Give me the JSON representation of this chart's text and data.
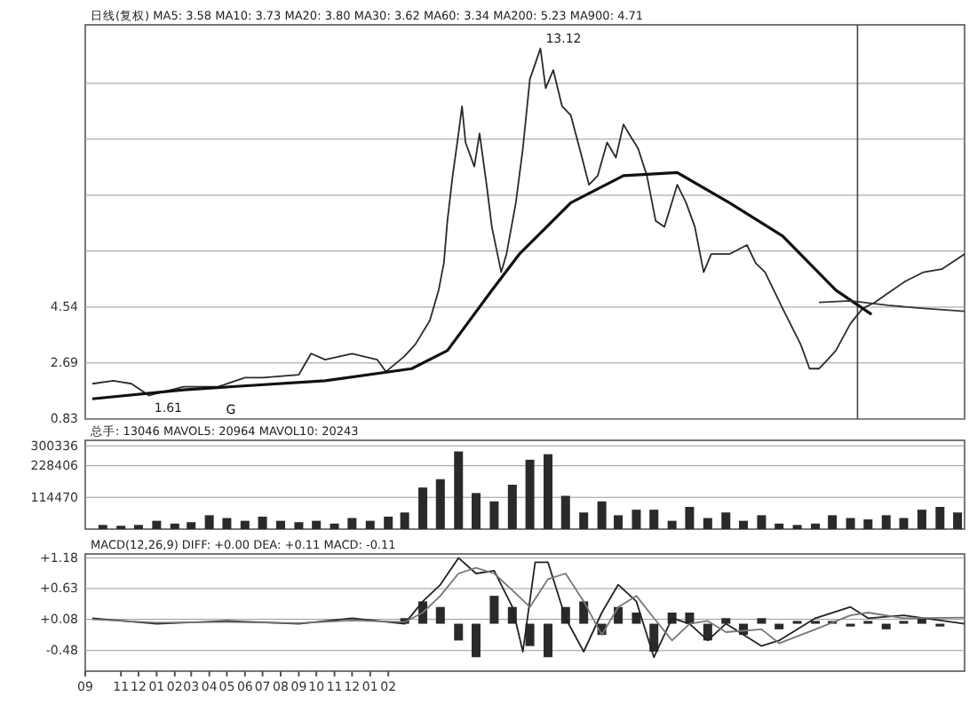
{
  "chart_data": [
    {
      "type": "line",
      "subtitle": "日线(复权)  MA5: 3.58 MA10: 3.73 MA20: 3.80 MA30: 3.62 MA60: 3.34 MA200: 5.23 MA900: 4.71",
      "xlim": [
        "2004-09-01",
        "2008-10-13"
      ],
      "ylim": [
        0.83,
        13.9
      ],
      "yticks": [
        0.83,
        2.69,
        4.54,
        {
          "value": 6.4,
          "label": null
        },
        {
          "value": 8.25,
          "label": null
        },
        {
          "value": 10.11,
          "label": null
        },
        {
          "value": 11.96,
          "label": null
        }
      ],
      "grid": "y",
      "tick_labels": "y",
      "marker": "none",
      "line_style": "solid",
      "series": [
        {
          "color": "#2a2a2a",
          "x": [
            "2004-09-13",
            "2004-10-19",
            "2004-11-19",
            "2004-12-19",
            "2005-02-16",
            "2005-04-16",
            "2005-06-01",
            "2005-07-01",
            "2005-09-01",
            "2005-09-22",
            "2005-10-16",
            "2005-12-01",
            "2006-01-13",
            "2006-01-28",
            "2006-02-28",
            "2006-03-19",
            "2006-04-13",
            "2006-04-28",
            "2006-05-07",
            "2006-05-13",
            "2006-05-22",
            "2006-06-01",
            "2006-06-07",
            "2006-06-13",
            "2006-06-28",
            "2006-07-07",
            "2006-07-19",
            "2006-07-28",
            "2006-08-13",
            "2006-08-22",
            "2006-09-07",
            "2006-09-19",
            "2006-10-01",
            "2006-10-10",
            "2006-10-19",
            "2006-10-28",
            "2006-11-10",
            "2006-11-25",
            "2006-12-10",
            "2006-12-25",
            "2007-01-10",
            "2007-01-25",
            "2007-02-10",
            "2007-02-25",
            "2007-03-10",
            "2007-03-19",
            "2007-04-04",
            "2007-04-19",
            "2007-05-04",
            "2007-05-19",
            "2007-06-10",
            "2007-06-25",
            "2007-07-10",
            "2007-07-25",
            "2007-08-07",
            "2007-09-07",
            "2007-10-07",
            "2007-10-22",
            "2007-11-07",
            "2007-12-07",
            "2008-01-07",
            "2008-01-22",
            "2008-02-07",
            "2008-02-22",
            "2008-03-07",
            "2008-04-01",
            "2008-04-22",
            "2008-05-13",
            "2008-06-04",
            "2008-07-04",
            "2008-08-04",
            "2008-09-04",
            "2008-10-13"
          ],
          "values": [
            2.0,
            2.1,
            2.0,
            1.61,
            1.9,
            1.9,
            2.2,
            2.2,
            2.3,
            3.0,
            2.8,
            3.0,
            2.8,
            2.4,
            2.9,
            3.3,
            4.1,
            5.1,
            6.0,
            7.4,
            8.9,
            10.3,
            11.2,
            10.0,
            9.2,
            10.3,
            8.6,
            7.2,
            5.7,
            6.3,
            8.0,
            9.8,
            12.1,
            12.6,
            13.12,
            11.8,
            12.4,
            11.2,
            10.9,
            9.8,
            8.6,
            8.9,
            10.0,
            9.5,
            10.6,
            10.3,
            9.8,
            8.9,
            7.4,
            7.2,
            8.6,
            8.0,
            7.2,
            5.7,
            6.3,
            6.3,
            6.6,
            6.0,
            5.7,
            4.5,
            3.3,
            2.5,
            2.5,
            2.8,
            3.1,
            4.0,
            4.5,
            4.7,
            5.0,
            5.4,
            5.7,
            5.8,
            6.3
          ]
        },
        {
          "color": "#111111",
          "x": [
            "2004-09-13",
            "2005-02-16",
            "2005-10-16",
            "2006-03-13",
            "2006-05-13",
            "2006-07-28",
            "2006-09-13",
            "2006-12-10",
            "2007-03-10",
            "2007-06-10",
            "2007-09-07",
            "2007-12-07",
            "2008-03-07",
            "2008-05-07"
          ],
          "values": [
            1.5,
            1.8,
            2.1,
            2.5,
            3.1,
            5.1,
            6.3,
            8.0,
            8.9,
            9.0,
            8.0,
            6.9,
            5.1,
            4.3
          ]
        },
        {
          "color": "#333333",
          "x": [
            "2008-02-07",
            "2008-04-01",
            "2008-06-04",
            "2008-08-04",
            "2008-10-13"
          ],
          "values": [
            4.7,
            4.75,
            4.6,
            4.5,
            4.4
          ]
        }
      ],
      "ref_lines": [
        {
          "axis": "x",
          "value": "2008-04-13"
        }
      ],
      "annotations": [
        {
          "text": "13.12",
          "x": "2006-10-19",
          "y": 13.12
        },
        {
          "text": "1.61",
          "x": "2004-12-19",
          "y": 1.61
        },
        "G"
      ]
    },
    {
      "type": "bar",
      "subtitle": "总手: 13046 MAVOL5: 20964 MAVOL10: 20243",
      "xlim": [
        "2004-09-01",
        "2008-10-13"
      ],
      "ylim": [
        0,
        320000
      ],
      "yticks": [
        114470,
        228406,
        300336
      ],
      "grid": "y",
      "tick_labels": "y",
      "color": "#2a2a2a",
      "x": [
        "2004-10",
        "2004-11",
        "2004-12",
        "2005-01",
        "2005-02",
        "2005-03",
        "2005-04",
        "2005-05",
        "2005-06",
        "2005-07",
        "2005-08",
        "2005-09",
        "2005-10",
        "2005-11",
        "2005-12",
        "2006-01",
        "2006-02",
        "2006-03",
        "2006-04",
        "2006-05",
        "2006-06",
        "2006-07",
        "2006-08",
        "2006-09",
        "2006-10",
        "2006-11",
        "2006-12",
        "2007-01",
        "2007-02",
        "2007-03",
        "2007-04",
        "2007-05",
        "2007-06",
        "2007-07",
        "2007-08",
        "2007-09",
        "2007-10",
        "2007-11",
        "2007-12",
        "2008-01",
        "2008-02",
        "2008-03",
        "2008-04",
        "2008-05",
        "2008-06",
        "2008-07",
        "2008-08",
        "2008-09",
        "2008-10"
      ],
      "values": [
        15000,
        12000,
        15000,
        30000,
        20000,
        25000,
        50000,
        40000,
        30000,
        45000,
        30000,
        25000,
        30000,
        20000,
        40000,
        30000,
        45000,
        60000,
        150000,
        180000,
        280000,
        130000,
        100000,
        160000,
        250000,
        270000,
        120000,
        60000,
        100000,
        50000,
        70000,
        70000,
        30000,
        80000,
        40000,
        60000,
        30000,
        50000,
        20000,
        15000,
        20000,
        50000,
        40000,
        35000,
        50000,
        40000,
        70000,
        80000,
        60000
      ]
    },
    {
      "type": "line",
      "subtitle": "MACD(12,26,9) DIFF: +0.00 DEA: +0.11 MACD: -0.11",
      "xlim": [
        "2004-09-01",
        "2008-10-13"
      ],
      "ylim": [
        -0.85,
        1.25
      ],
      "yticks": [
        {
          "value": 1.18,
          "label": "+1.18"
        },
        {
          "value": 0.63,
          "label": "+0.63"
        },
        {
          "value": 0.08,
          "label": "+0.08"
        },
        -0.48
      ],
      "grid": "y",
      "marker": "none",
      "line_style": "solid",
      "xticks": [
        {
          "value": "2004-09",
          "label": "09"
        },
        {
          "value": "2004-11",
          "label": "11"
        },
        {
          "value": "2004-12",
          "label": "12"
        },
        {
          "value": "2005-01",
          "label": "01"
        },
        {
          "value": "2005-02",
          "label": "02"
        },
        {
          "value": "2005-03",
          "label": "03"
        },
        {
          "value": "2005-04",
          "label": "04"
        },
        {
          "value": "2005-05",
          "label": "05"
        },
        {
          "value": "2005-06",
          "label": "06"
        },
        {
          "value": "2005-07",
          "label": "07"
        },
        {
          "value": "2005-08",
          "label": "08"
        },
        {
          "value": "2005-09",
          "label": "09"
        },
        {
          "value": "2005-10",
          "label": "10"
        },
        {
          "value": "2005-11",
          "label": "11"
        },
        {
          "value": "2005-12",
          "label": "12"
        },
        {
          "value": "2006-01",
          "label": "01"
        },
        {
          "value": "2006-02",
          "label": "02"
        }
      ],
      "series": [
        {
          "type": "bar",
          "color": "#2a2a2a",
          "x": [
            "2006-03",
            "2006-04",
            "2006-05",
            "2006-06",
            "2006-07",
            "2006-08",
            "2006-09",
            "2006-10",
            "2006-11",
            "2006-12",
            "2007-01",
            "2007-02",
            "2007-03",
            "2007-04",
            "2007-05",
            "2007-06",
            "2007-07",
            "2007-08",
            "2007-09",
            "2007-10",
            "2007-11",
            "2007-12",
            "2008-01",
            "2008-02",
            "2008-03",
            "2008-04",
            "2008-05",
            "2008-06",
            "2008-07",
            "2008-08",
            "2008-09"
          ],
          "values": [
            0.1,
            0.4,
            0.3,
            -0.3,
            -0.6,
            0.5,
            0.3,
            -0.4,
            -0.6,
            0.3,
            0.4,
            -0.2,
            0.3,
            0.2,
            -0.5,
            0.2,
            0.2,
            -0.3,
            0.1,
            -0.2,
            0.1,
            -0.1,
            0.05,
            0.05,
            0.05,
            -0.05,
            0.05,
            -0.1,
            0.05,
            0.1,
            -0.05
          ]
        },
        {
          "color": "#222222",
          "x": [
            "2004-09-13",
            "2005-01",
            "2005-05",
            "2005-09",
            "2005-12",
            "2006-03",
            "2006-04",
            "2006-05",
            "2006-06",
            "2006-07",
            "2006-08",
            "2006-09",
            "2006-09-19",
            "2006-10-10",
            "2006-11",
            "2006-12",
            "2007-01",
            "2007-02",
            "2007-03",
            "2007-04",
            "2007-05",
            "2007-06",
            "2007-07",
            "2007-08",
            "2007-09",
            "2007-11",
            "2007-12",
            "2008-02",
            "2008-04",
            "2008-05",
            "2008-07",
            "2008-10-13"
          ],
          "values": [
            0.1,
            0.0,
            0.05,
            0.0,
            0.1,
            0.0,
            0.4,
            0.7,
            1.18,
            0.9,
            0.95,
            0.3,
            -0.5,
            1.1,
            1.1,
            0.1,
            -0.5,
            0.2,
            0.7,
            0.4,
            -0.6,
            0.1,
            0.0,
            -0.3,
            0.0,
            -0.4,
            -0.3,
            0.1,
            0.3,
            0.1,
            0.15,
            0.0
          ]
        },
        {
          "color": "#777777",
          "x": [
            "2004-09-13",
            "2005-01",
            "2005-05",
            "2005-09",
            "2005-12",
            "2006-03",
            "2006-04",
            "2006-05",
            "2006-06",
            "2006-07",
            "2006-08",
            "2006-09",
            "2006-10",
            "2006-11",
            "2006-12",
            "2007-01",
            "2007-02",
            "2007-03",
            "2007-04",
            "2007-05",
            "2007-06",
            "2007-07",
            "2007-08",
            "2007-09",
            "2007-11",
            "2007-12",
            "2008-02",
            "2008-04",
            "2008-05",
            "2008-07",
            "2008-10-13"
          ],
          "values": [
            0.08,
            0.02,
            0.03,
            0.01,
            0.06,
            0.03,
            0.2,
            0.5,
            0.9,
            1.0,
            0.9,
            0.6,
            0.3,
            0.8,
            0.9,
            0.4,
            -0.2,
            0.3,
            0.5,
            0.1,
            -0.3,
            0.0,
            0.05,
            -0.15,
            -0.1,
            -0.35,
            -0.1,
            0.15,
            0.2,
            0.1,
            0.11
          ]
        }
      ]
    }
  ]
}
